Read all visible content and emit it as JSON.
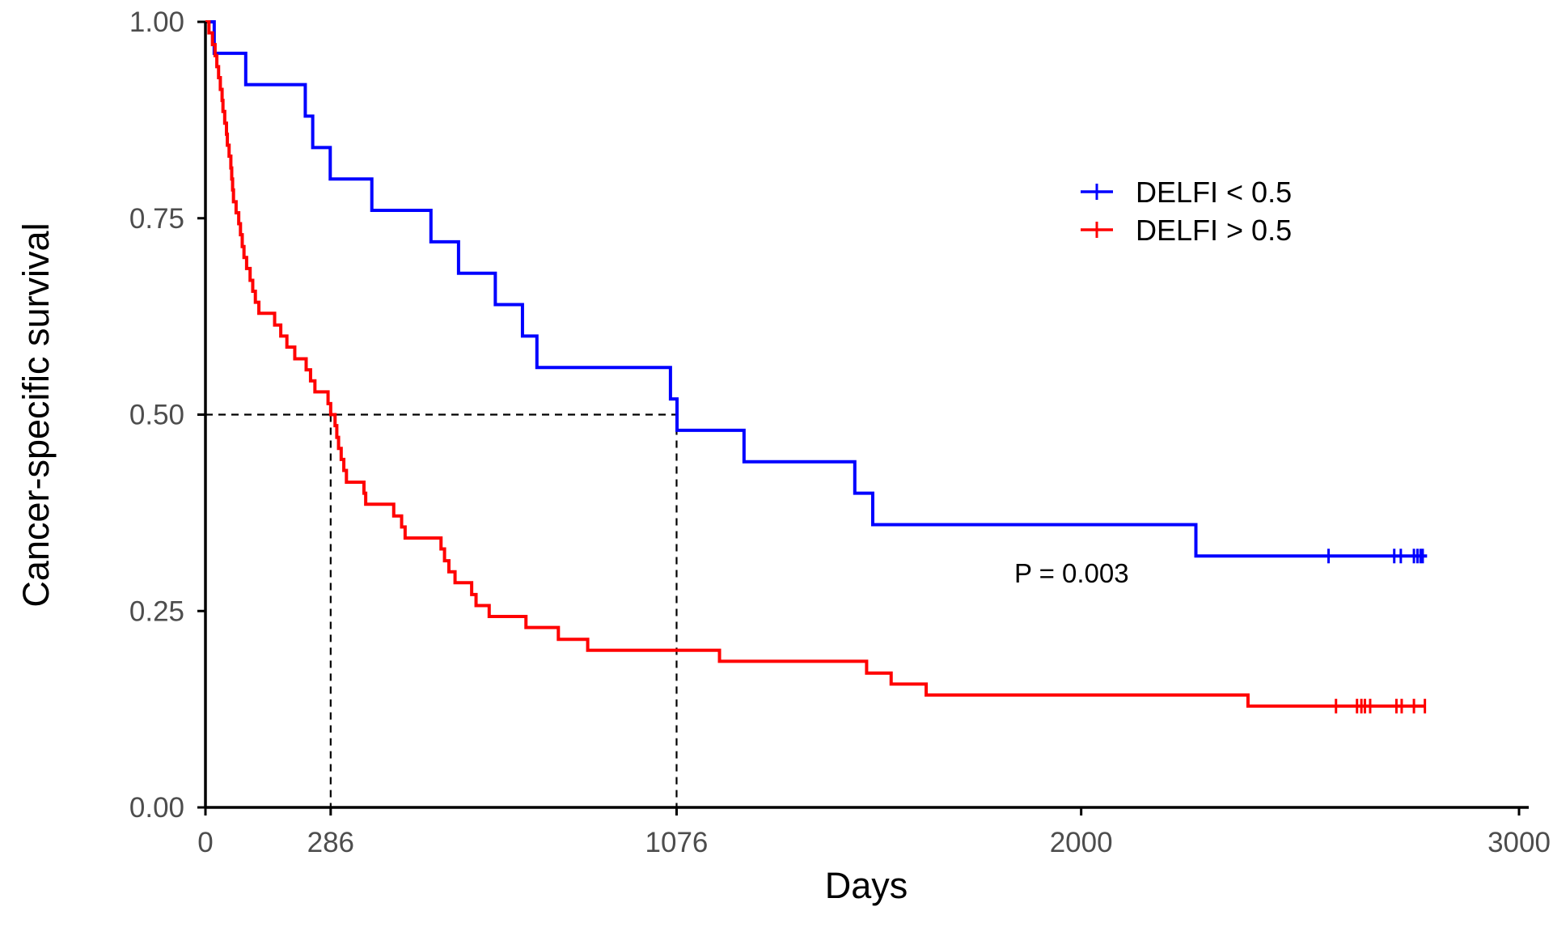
{
  "chart_data": {
    "type": "line",
    "title": "",
    "xlabel": "Days",
    "ylabel": "Cancer-specific survival",
    "xlim": [
      0,
      3000
    ],
    "ylim": [
      0,
      1
    ],
    "x_ticks": [
      0,
      286,
      1076,
      2000,
      3000
    ],
    "x_tick_labels": [
      "0",
      "286",
      "1076",
      "2000",
      "3000"
    ],
    "y_ticks": [
      0,
      0.25,
      0.5,
      0.75,
      1
    ],
    "y_tick_labels": [
      "0.00",
      "0.25",
      "0.50",
      "0.75",
      "1.00"
    ],
    "grid": false,
    "legend_position": "top-right",
    "series": [
      {
        "name": "DELFI < 0.5",
        "color": "#0000ff",
        "steps": [
          [
            0,
            1.0
          ],
          [
            20,
            0.96
          ],
          [
            92,
            0.92
          ],
          [
            228,
            0.88
          ],
          [
            245,
            0.84
          ],
          [
            285,
            0.8
          ],
          [
            380,
            0.76
          ],
          [
            515,
            0.72
          ],
          [
            578,
            0.68
          ],
          [
            662,
            0.64
          ],
          [
            724,
            0.6
          ],
          [
            757,
            0.56
          ],
          [
            1062,
            0.52
          ],
          [
            1077,
            0.48
          ],
          [
            1230,
            0.44
          ],
          [
            1483,
            0.4
          ],
          [
            1524,
            0.36
          ],
          [
            2262,
            0.32
          ]
        ],
        "end_x": 2790,
        "censor_x": [
          2565,
          2715,
          2730,
          2760,
          2768,
          2775,
          2780
        ]
      },
      {
        "name": "DELFI > 0.5",
        "color": "#ff0000",
        "steps": [
          [
            0,
            1.0
          ],
          [
            8,
            0.986
          ],
          [
            16,
            0.971
          ],
          [
            22,
            0.957
          ],
          [
            26,
            0.943
          ],
          [
            30,
            0.929
          ],
          [
            34,
            0.914
          ],
          [
            38,
            0.9
          ],
          [
            40,
            0.886
          ],
          [
            44,
            0.871
          ],
          [
            48,
            0.857
          ],
          [
            50,
            0.843
          ],
          [
            54,
            0.829
          ],
          [
            58,
            0.814
          ],
          [
            60,
            0.8
          ],
          [
            62,
            0.786
          ],
          [
            64,
            0.771
          ],
          [
            70,
            0.757
          ],
          [
            76,
            0.743
          ],
          [
            80,
            0.729
          ],
          [
            84,
            0.714
          ],
          [
            88,
            0.7
          ],
          [
            94,
            0.686
          ],
          [
            102,
            0.671
          ],
          [
            108,
            0.657
          ],
          [
            114,
            0.643
          ],
          [
            122,
            0.629
          ],
          [
            158,
            0.614
          ],
          [
            172,
            0.6
          ],
          [
            186,
            0.586
          ],
          [
            204,
            0.571
          ],
          [
            230,
            0.557
          ],
          [
            240,
            0.543
          ],
          [
            250,
            0.529
          ],
          [
            280,
            0.514
          ],
          [
            286,
            0.5
          ],
          [
            296,
            0.486
          ],
          [
            300,
            0.471
          ],
          [
            304,
            0.457
          ],
          [
            310,
            0.443
          ],
          [
            316,
            0.429
          ],
          [
            322,
            0.414
          ],
          [
            362,
            0.4
          ],
          [
            366,
            0.386
          ],
          [
            430,
            0.371
          ],
          [
            448,
            0.357
          ],
          [
            456,
            0.343
          ],
          [
            538,
            0.329
          ],
          [
            546,
            0.314
          ],
          [
            556,
            0.3
          ],
          [
            570,
            0.286
          ],
          [
            608,
            0.271
          ],
          [
            618,
            0.257
          ],
          [
            648,
            0.243
          ],
          [
            732,
            0.229
          ],
          [
            806,
            0.214
          ],
          [
            873,
            0.2
          ],
          [
            1174,
            0.186
          ],
          [
            1510,
            0.171
          ],
          [
            1566,
            0.157
          ],
          [
            1646,
            0.143
          ],
          [
            2381,
            0.129
          ]
        ],
        "end_x": 2785,
        "censor_x": [
          2582,
          2630,
          2640,
          2648,
          2660,
          2720,
          2732,
          2760,
          2785
        ]
      }
    ],
    "median_reference": {
      "y": 0.5,
      "x_values": [
        286,
        1076
      ]
    },
    "annotations": [
      "P = 0.003"
    ]
  }
}
